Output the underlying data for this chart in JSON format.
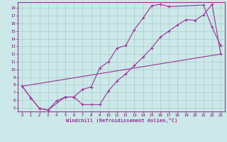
{
  "xlabel": "Windchill (Refroidissement éolien,°C)",
  "bg_color": "#cce8e8",
  "grid_color": "#aacccc",
  "line_color": "#993399",
  "xlim": [
    -0.5,
    23.5
  ],
  "ylim": [
    4.5,
    18.8
  ],
  "xticks": [
    0,
    1,
    2,
    3,
    4,
    5,
    6,
    7,
    8,
    9,
    10,
    11,
    12,
    13,
    14,
    15,
    16,
    17,
    18,
    19,
    20,
    21,
    22,
    23
  ],
  "yticks": [
    5,
    6,
    7,
    8,
    9,
    10,
    11,
    12,
    13,
    14,
    15,
    16,
    17,
    18
  ],
  "line1_x": [
    0,
    1,
    2,
    3,
    4,
    5,
    6,
    7,
    8,
    9,
    10,
    11,
    12,
    13,
    14,
    15,
    16,
    17,
    21,
    22,
    23
  ],
  "line1_y": [
    7.8,
    6.3,
    4.9,
    4.7,
    5.9,
    6.4,
    6.4,
    7.4,
    7.7,
    10.2,
    11.0,
    12.8,
    13.1,
    15.2,
    16.7,
    18.3,
    18.5,
    18.2,
    18.4,
    15.5,
    13.1
  ],
  "line2_x": [
    0,
    1,
    2,
    3,
    5,
    6,
    7,
    8,
    9,
    10,
    11,
    12,
    13,
    14,
    15,
    16,
    17,
    18,
    19,
    20,
    21,
    22,
    23
  ],
  "line2_y": [
    7.8,
    6.3,
    4.9,
    4.7,
    6.4,
    6.4,
    5.4,
    5.4,
    5.4,
    7.2,
    8.5,
    9.4,
    10.5,
    11.6,
    12.8,
    14.2,
    15.0,
    15.8,
    16.5,
    16.4,
    17.1,
    18.5,
    12.0
  ],
  "line3_x": [
    0,
    23
  ],
  "line3_y": [
    7.8,
    12.0
  ]
}
